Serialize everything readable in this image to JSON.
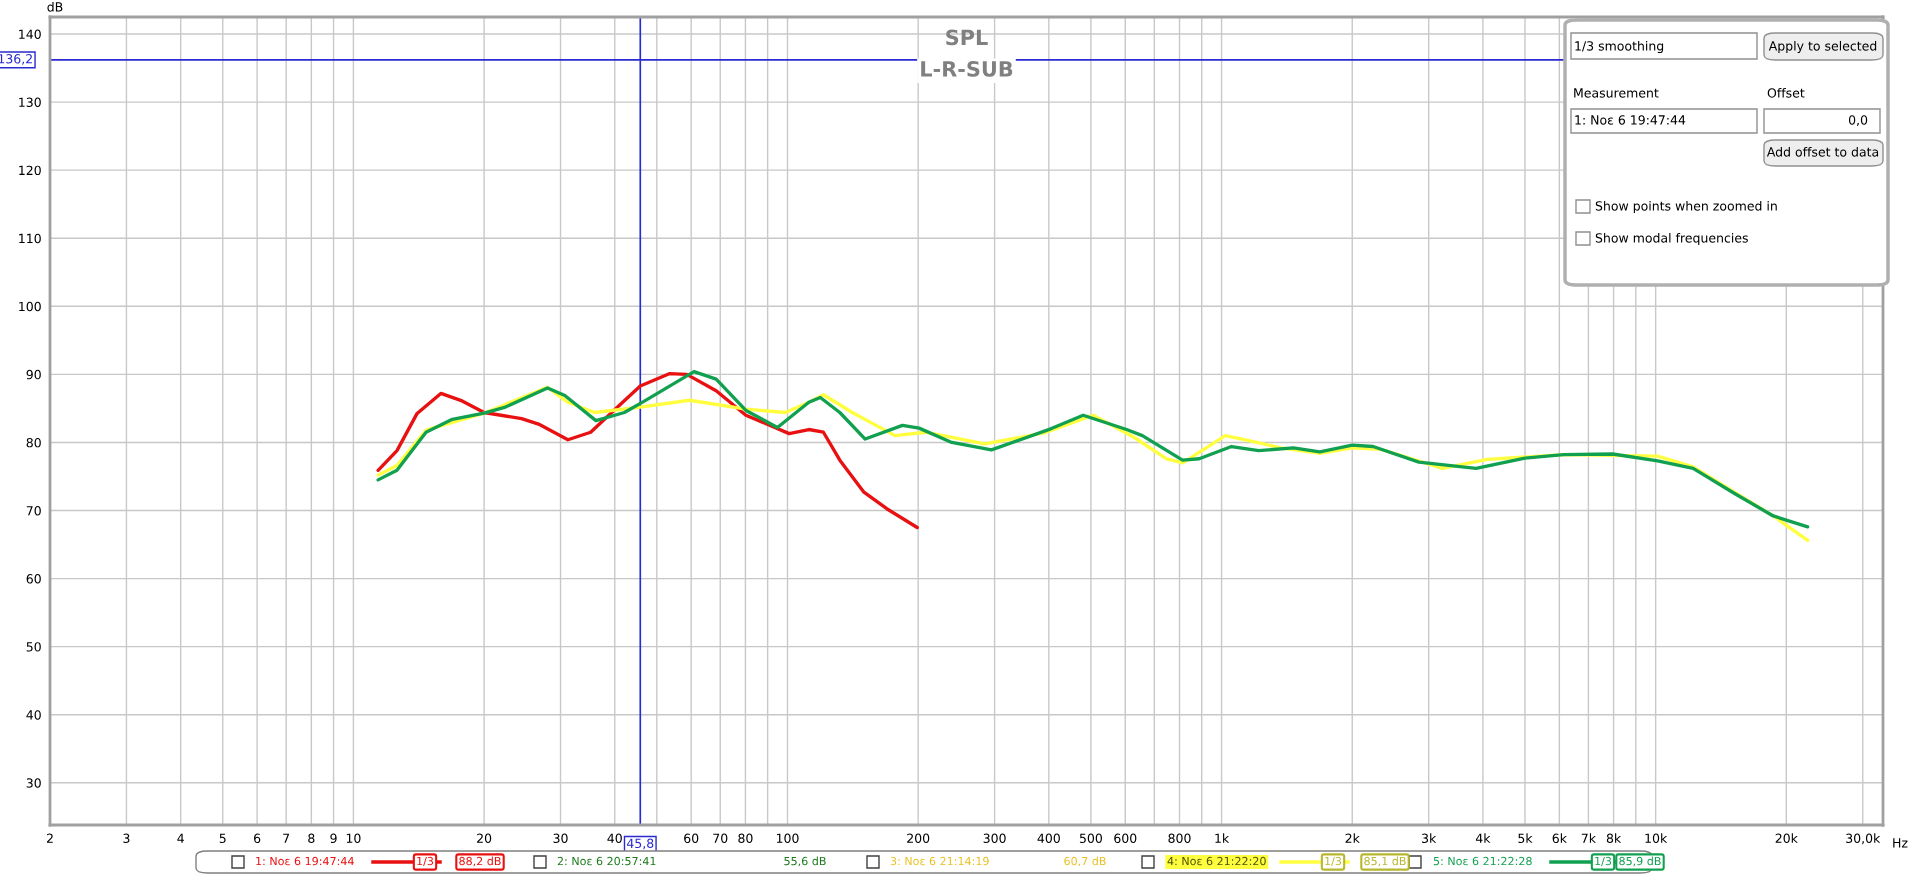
{
  "chart_data": {
    "type": "line",
    "title": "SPL",
    "subtitle": "L-R-SUB",
    "xlabel": "Hz",
    "ylabel": "dB",
    "log": "x",
    "grid": true,
    "legend": "bottom",
    "xlim": [
      2,
      33400
    ],
    "ylim": [
      23.8,
      142.5
    ],
    "xticks": [
      2,
      3,
      4,
      5,
      6,
      7,
      8,
      9,
      10,
      20,
      30,
      40,
      {
        "value": 50,
        "label": null
      },
      60,
      70,
      80,
      {
        "value": 90,
        "label": null
      },
      100,
      200,
      300,
      400,
      500,
      600,
      {
        "value": 700,
        "label": null
      },
      800,
      {
        "value": 900,
        "label": null
      },
      {
        "value": 1000,
        "label": "1k"
      },
      {
        "value": 2000,
        "label": "2k"
      },
      {
        "value": 3000,
        "label": "3k"
      },
      {
        "value": 4000,
        "label": "4k"
      },
      {
        "value": 5000,
        "label": "5k"
      },
      {
        "value": 6000,
        "label": "6k"
      },
      {
        "value": 7000,
        "label": "7k"
      },
      {
        "value": 8000,
        "label": "8k"
      },
      {
        "value": 9000,
        "label": null
      },
      {
        "value": 10000,
        "label": "10k"
      },
      {
        "value": 20000,
        "label": "20k"
      },
      {
        "value": 30000,
        "label": "30,0k"
      }
    ],
    "yticks": [
      30,
      40,
      50,
      60,
      70,
      80,
      90,
      100,
      110,
      120,
      130,
      140
    ],
    "series": [
      {
        "name": "1: Νοε 6 19:47:44",
        "color": "#e81010",
        "x": [
          11.4,
          12.6,
          14.0,
          15.9,
          17.8,
          20,
          24.4,
          26.7,
          31.2,
          35.2,
          40.6,
          45.8,
          53.4,
          58.6,
          68.5,
          80.2,
          100.9,
          112,
          121,
          132,
          150,
          169,
          199
        ],
        "values": [
          75.9,
          78.8,
          84.2,
          87.2,
          86.1,
          84.4,
          83.5,
          82.7,
          80.4,
          81.5,
          85.2,
          88.3,
          90.1,
          90.0,
          87.6,
          84.0,
          81.3,
          81.9,
          81.5,
          77.4,
          72.7,
          70.3,
          67.5
        ]
      },
      {
        "name": "4: Νοε 6 21:22:20",
        "color": "#ffff40",
        "x": [
          11.4,
          12.6,
          14.7,
          20,
          28,
          31.2,
          35.9,
          45.8,
          59.5,
          80.2,
          99,
          112,
          121,
          141,
          177,
          208,
          285,
          390,
          506,
          627,
          747,
          814,
          1020,
          1150,
          1370,
          1684,
          2000,
          2326,
          3230,
          4090,
          6135,
          10100,
          12200,
          18660,
          22400
        ],
        "values": [
          75.2,
          76.6,
          81.8,
          84.3,
          88.1,
          85.9,
          84.4,
          85.2,
          86.2,
          84.9,
          84.4,
          85.9,
          87.0,
          84.4,
          81.0,
          81.5,
          79.8,
          81.4,
          84.0,
          80.8,
          77.6,
          77.0,
          81.0,
          80.3,
          79.2,
          78.4,
          79.2,
          79.0,
          76.2,
          77.5,
          78.2,
          78.0,
          76.4,
          69.2,
          65.6
        ]
      },
      {
        "name": "5: Νοε 6 21:22:28",
        "color": "#10a050",
        "x": [
          11.4,
          12.6,
          14.7,
          16.9,
          20,
          22.4,
          28,
          30.7,
          36.2,
          42.1,
          46.9,
          60.9,
          68.5,
          80.2,
          94.8,
          112,
          119,
          132,
          151,
          184,
          201,
          239,
          295,
          404,
          480,
          604,
          657,
          813,
          888,
          1054,
          1218,
          1463,
          1684,
          2000,
          2234,
          2848,
          3857,
          5000,
          6135,
          7965,
          10100,
          12200,
          15200,
          18660,
          22400
        ],
        "values": [
          74.5,
          75.9,
          81.5,
          83.4,
          84.3,
          85.2,
          88.0,
          86.9,
          83.2,
          84.4,
          86.1,
          90.4,
          89.3,
          84.7,
          82.2,
          85.9,
          86.6,
          84.4,
          80.5,
          82.5,
          82.1,
          80.0,
          78.9,
          82.0,
          84.0,
          81.9,
          81.0,
          77.4,
          77.6,
          79.4,
          78.8,
          79.2,
          78.6,
          79.6,
          79.4,
          77.1,
          76.2,
          77.7,
          78.2,
          78.3,
          77.3,
          76.2,
          72.5,
          69.2,
          67.6
        ]
      }
    ],
    "ref_lines": [
      {
        "axis": "x",
        "value": 45.8,
        "label": "45,8",
        "color": "#2a2ad0"
      },
      {
        "axis": "y",
        "value": 136.2,
        "label": "136,2",
        "color": "#2a2ad0"
      }
    ],
    "annotations": [
      "1/3 smoothing",
      "Apply to selected",
      "Measurement",
      "Offset",
      "1: Νοε 6 19:47:44",
      "0,0",
      "Add offset to data",
      "Show points when zoomed in",
      "Show modal frequencies",
      "1/3",
      "88,2 dB",
      "2: Νοε 6 20:57:41",
      "55,6 dB",
      "3: Νοε 6 21:14:19",
      "60,7 dB",
      "1/3",
      "85,1 dB",
      "1/3",
      "85,9 dB"
    ]
  }
}
